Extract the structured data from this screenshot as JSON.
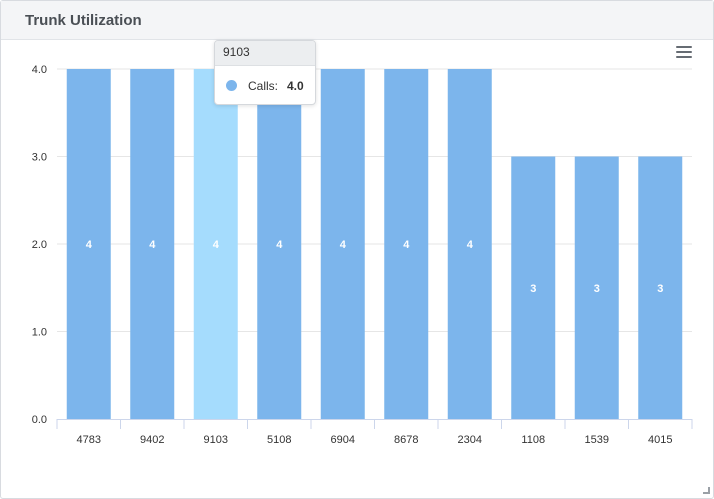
{
  "panel": {
    "title": "Trunk Utilization"
  },
  "menu": {
    "icon": "hamburger-menu-icon"
  },
  "tooltip": {
    "category": "9103",
    "series_label": "Calls:",
    "value": "4.0",
    "color": "#7cb5ec"
  },
  "colors": {
    "bar": "#7cb5ec",
    "bar_hover": "#a5dcfd",
    "grid": "#e6e6e6",
    "axis": "#ccd6eb"
  },
  "chart_data": {
    "type": "bar",
    "title": "",
    "xlabel": "",
    "ylabel": "",
    "categories": [
      "4783",
      "9402",
      "9103",
      "5108",
      "6904",
      "8678",
      "2304",
      "1108",
      "1539",
      "4015"
    ],
    "series": [
      {
        "name": "Calls",
        "values": [
          4,
          4,
          4,
          4,
          4,
          4,
          4,
          3,
          3,
          3
        ]
      }
    ],
    "data_labels": [
      "4",
      "4",
      "4",
      "4",
      "4",
      "4",
      "4",
      "3",
      "3",
      "3"
    ],
    "highlighted_category": "9103",
    "ylim": [
      0,
      4
    ],
    "yticks": [
      "0.0",
      "1.0",
      "2.0",
      "3.0",
      "4.0"
    ],
    "grid": true,
    "legend": "none"
  }
}
